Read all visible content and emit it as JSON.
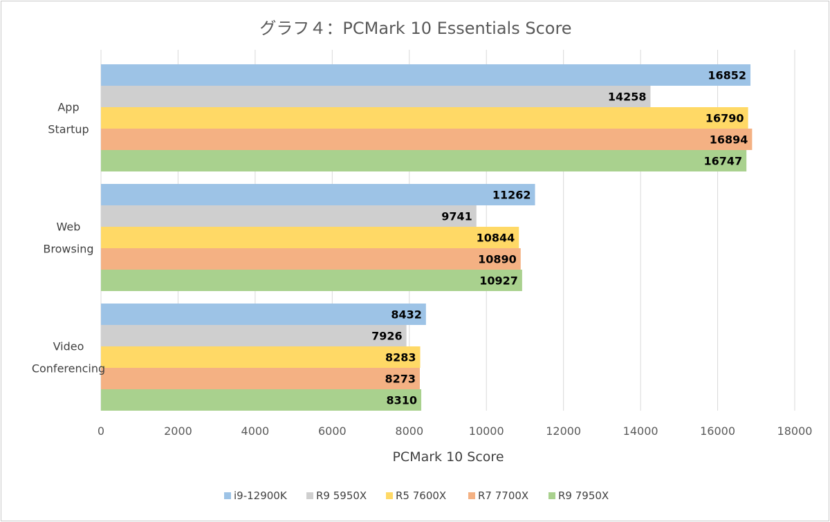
{
  "chart_data": {
    "type": "bar",
    "orientation": "horizontal",
    "title": "グラフ４：PCMark 10 Essentials Score",
    "xlabel": "PCMark 10 Score",
    "ylabel": "",
    "categories": [
      [
        "App",
        "Startup"
      ],
      [
        "Web",
        "Browsing"
      ],
      [
        "Video",
        "Conferencing"
      ]
    ],
    "series": [
      {
        "name": "i9-12900K",
        "color": "#9dc3e6",
        "values": [
          16852,
          11262,
          8432
        ]
      },
      {
        "name": "R9 5950X",
        "color": "#cfcfcf",
        "values": [
          14258,
          9741,
          7926
        ]
      },
      {
        "name": "R5 7600X",
        "color": "#ffd966",
        "values": [
          16790,
          10844,
          8283
        ]
      },
      {
        "name": "R7 7700X",
        "color": "#f4b183",
        "values": [
          16894,
          10890,
          8273
        ]
      },
      {
        "name": "R9 7950X",
        "color": "#a9d18e",
        "values": [
          16747,
          10927,
          8310
        ]
      }
    ],
    "xlim": [
      0,
      18000
    ],
    "xticks": [
      "0",
      "2000",
      "4000",
      "6000",
      "8000",
      "10000",
      "12000",
      "14000",
      "16000",
      "18000"
    ],
    "grid": true,
    "data_labels": true,
    "legend_position": "bottom"
  }
}
